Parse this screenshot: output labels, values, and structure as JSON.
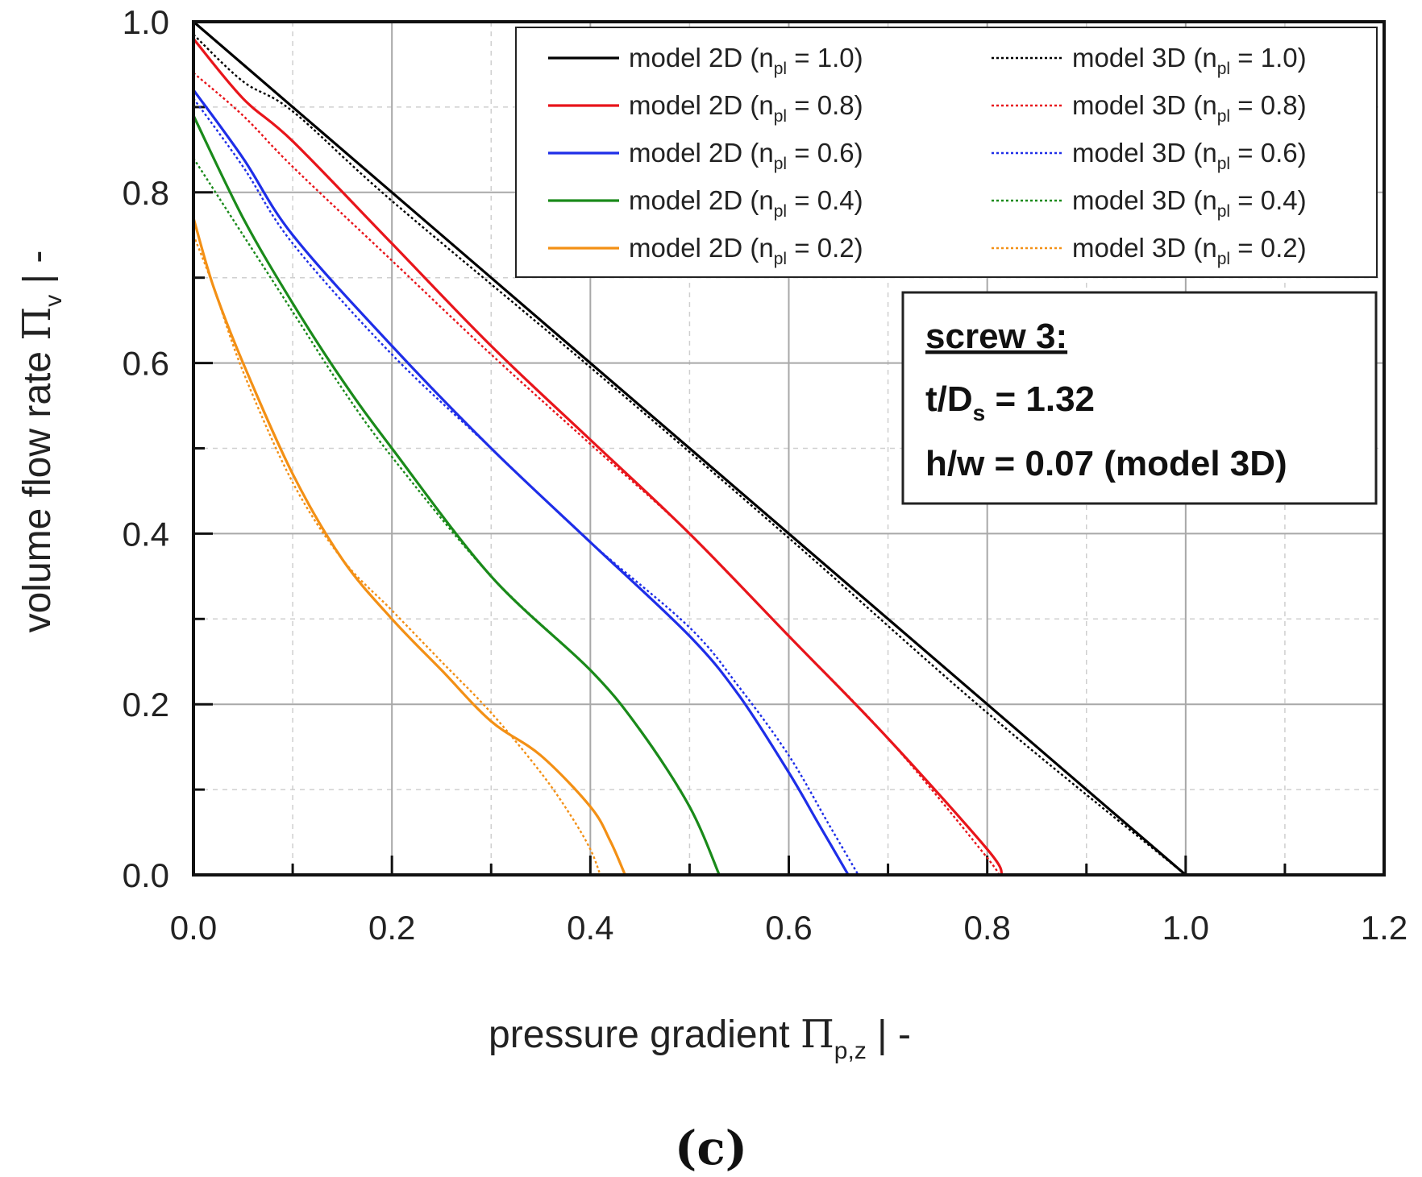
{
  "chart_data": {
    "type": "line",
    "panel_label": "(c)",
    "xlabel": {
      "prefix": "pressure gradient ",
      "symbol": "Π",
      "subscript": "p,z",
      "suffix": "  |  -"
    },
    "ylabel": {
      "prefix": "volume flow rate ",
      "symbol": "Π",
      "subscript": "v",
      "suffix": "  |  -"
    },
    "xlim": [
      0,
      1.2
    ],
    "ylim": [
      0,
      1.0
    ],
    "xticks": [
      "0.0",
      "0.2",
      "0.4",
      "0.6",
      "0.8",
      "1.0",
      "1.2"
    ],
    "yticks": [
      "0.0",
      "0.2",
      "0.4",
      "0.6",
      "0.8",
      "1.0"
    ],
    "grid": true,
    "legend_position": "top-right",
    "annotation": {
      "title": "screw 3:",
      "line1_main": "t/D",
      "line1_sub": "s",
      "line1_rest": " = 1.32",
      "line2": "h/w = 0.07 (model 3D)"
    },
    "series": [
      {
        "name": "model 2D",
        "n_label": "n",
        "n_sub": "pl",
        "n_value": " = 1.0)",
        "color": "#000000",
        "style": "solid",
        "x": [
          0,
          0.2,
          0.4,
          0.6,
          0.8,
          1.0
        ],
        "y": [
          1.0,
          0.8,
          0.6,
          0.4,
          0.2,
          0.0
        ]
      },
      {
        "name": "model 2D",
        "n_label": "n",
        "n_sub": "pl",
        "n_value": " = 0.8)",
        "color": "#e8151b",
        "style": "solid",
        "x": [
          0,
          0.05,
          0.1,
          0.2,
          0.3,
          0.4,
          0.5,
          0.6,
          0.7,
          0.8,
          0.815
        ],
        "y": [
          0.98,
          0.91,
          0.86,
          0.74,
          0.62,
          0.51,
          0.4,
          0.28,
          0.16,
          0.03,
          0.0
        ]
      },
      {
        "name": "model 2D",
        "n_label": "n",
        "n_sub": "pl",
        "n_value": " = 0.6)",
        "color": "#1e2ee8",
        "style": "solid",
        "x": [
          0,
          0.05,
          0.1,
          0.2,
          0.3,
          0.4,
          0.5,
          0.55,
          0.6,
          0.63,
          0.66
        ],
        "y": [
          0.92,
          0.84,
          0.75,
          0.62,
          0.5,
          0.39,
          0.28,
          0.21,
          0.12,
          0.06,
          0.0
        ]
      },
      {
        "name": "model 2D",
        "n_label": "n",
        "n_sub": "pl",
        "n_value": " = 0.4)",
        "color": "#1a8a1a",
        "style": "solid",
        "x": [
          0,
          0.05,
          0.1,
          0.15,
          0.2,
          0.3,
          0.4,
          0.45,
          0.5,
          0.53
        ],
        "y": [
          0.89,
          0.77,
          0.67,
          0.58,
          0.5,
          0.35,
          0.24,
          0.17,
          0.08,
          0.0
        ]
      },
      {
        "name": "model 2D",
        "n_label": "n",
        "n_sub": "pl",
        "n_value": " = 0.2)",
        "color": "#f39015",
        "style": "solid",
        "x": [
          0,
          0.02,
          0.05,
          0.1,
          0.15,
          0.2,
          0.25,
          0.3,
          0.35,
          0.4,
          0.42,
          0.435
        ],
        "y": [
          0.77,
          0.69,
          0.6,
          0.47,
          0.37,
          0.3,
          0.24,
          0.18,
          0.14,
          0.08,
          0.04,
          0.0
        ]
      },
      {
        "name": "model 3D",
        "n_label": "n",
        "n_sub": "pl",
        "n_value": " = 1.0)",
        "color": "#000000",
        "style": "dotted",
        "x": [
          0,
          0.05,
          0.1,
          0.2,
          0.4,
          0.6,
          0.8,
          1.0
        ],
        "y": [
          0.985,
          0.93,
          0.895,
          0.79,
          0.595,
          0.395,
          0.19,
          0.0
        ]
      },
      {
        "name": "model 3D",
        "n_label": "n",
        "n_sub": "pl",
        "n_value": " = 0.8)",
        "color": "#e8151b",
        "style": "dotted",
        "x": [
          0,
          0.05,
          0.1,
          0.2,
          0.3,
          0.4,
          0.5,
          0.6,
          0.7,
          0.8,
          0.81
        ],
        "y": [
          0.94,
          0.89,
          0.83,
          0.72,
          0.61,
          0.505,
          0.4,
          0.28,
          0.16,
          0.02,
          0.0
        ]
      },
      {
        "name": "model 3D",
        "n_label": "n",
        "n_sub": "pl",
        "n_value": " = 0.6)",
        "color": "#1e2ee8",
        "style": "dotted",
        "x": [
          0,
          0.05,
          0.1,
          0.2,
          0.3,
          0.4,
          0.5,
          0.55,
          0.6,
          0.64,
          0.67
        ],
        "y": [
          0.91,
          0.83,
          0.74,
          0.61,
          0.5,
          0.39,
          0.29,
          0.22,
          0.14,
          0.06,
          0.0
        ]
      },
      {
        "name": "model 3D",
        "n_label": "n",
        "n_sub": "pl",
        "n_value": " = 0.4)",
        "color": "#1a8a1a",
        "style": "dotted",
        "x": [
          0,
          0.05,
          0.1,
          0.15,
          0.2,
          0.3,
          0.4,
          0.45,
          0.5,
          0.53
        ],
        "y": [
          0.84,
          0.75,
          0.66,
          0.57,
          0.49,
          0.35,
          0.24,
          0.17,
          0.08,
          0.0
        ]
      },
      {
        "name": "model 3D",
        "n_label": "n",
        "n_sub": "pl",
        "n_value": " = 0.2)",
        "color": "#f39015",
        "style": "dotted",
        "x": [
          0,
          0.02,
          0.05,
          0.1,
          0.15,
          0.2,
          0.25,
          0.3,
          0.35,
          0.38,
          0.4,
          0.41
        ],
        "y": [
          0.75,
          0.69,
          0.59,
          0.46,
          0.37,
          0.31,
          0.25,
          0.19,
          0.12,
          0.07,
          0.03,
          0.0
        ]
      }
    ]
  }
}
